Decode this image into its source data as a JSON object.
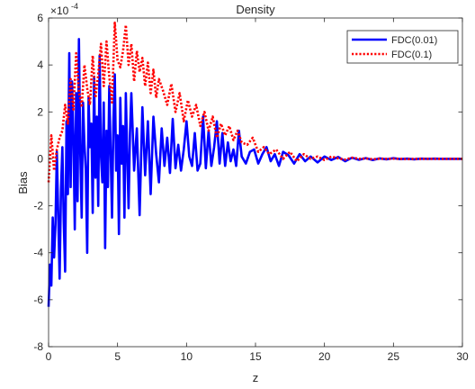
{
  "chart_data": {
    "type": "line",
    "title": "Density",
    "xlabel": "z",
    "ylabel": "Bias",
    "y_exponent_label": "×10",
    "y_exponent_power": "-4",
    "xlim": [
      0,
      30
    ],
    "ylim": [
      -8,
      6
    ],
    "y_scale_factor": 0.0001,
    "grid": false,
    "legend_placement": "top-right",
    "xticks": [
      0,
      5,
      10,
      15,
      20,
      25,
      30
    ],
    "xtick_labels": [
      "0",
      "5",
      "10",
      "15",
      "20",
      "25",
      "30"
    ],
    "yticks": [
      -8,
      -6,
      -4,
      -2,
      0,
      2,
      4,
      6
    ],
    "ytick_labels": [
      "-8",
      "-6",
      "-4",
      "-2",
      "0",
      "2",
      "4",
      "6"
    ],
    "series": [
      {
        "name": "FDC(0.01)",
        "color": "#0000ff",
        "style": "solid",
        "x": [
          0,
          0.1,
          0.2,
          0.3,
          0.4,
          0.5,
          0.6,
          0.7,
          0.8,
          0.9,
          1.0,
          1.1,
          1.2,
          1.3,
          1.4,
          1.5,
          1.6,
          1.7,
          1.8,
          1.9,
          2.0,
          2.1,
          2.2,
          2.3,
          2.4,
          2.5,
          2.6,
          2.7,
          2.8,
          2.9,
          3.0,
          3.1,
          3.2,
          3.3,
          3.4,
          3.5,
          3.6,
          3.7,
          3.8,
          3.9,
          4.0,
          4.1,
          4.2,
          4.3,
          4.4,
          4.5,
          4.6,
          4.7,
          4.8,
          4.9,
          5.0,
          5.1,
          5.2,
          5.3,
          5.4,
          5.5,
          5.6,
          5.7,
          5.8,
          5.9,
          6.0,
          6.2,
          6.4,
          6.6,
          6.8,
          7.0,
          7.2,
          7.4,
          7.6,
          7.8,
          8.0,
          8.2,
          8.4,
          8.6,
          8.8,
          9.0,
          9.2,
          9.4,
          9.6,
          9.8,
          10.0,
          10.2,
          10.4,
          10.6,
          10.8,
          11.0,
          11.2,
          11.4,
          11.6,
          11.8,
          12.0,
          12.2,
          12.4,
          12.6,
          12.8,
          13.0,
          13.2,
          13.4,
          13.6,
          13.8,
          14.0,
          14.3,
          14.6,
          14.9,
          15.2,
          15.5,
          15.8,
          16.1,
          16.4,
          16.7,
          17.0,
          17.4,
          17.8,
          18.2,
          18.6,
          19.0,
          19.5,
          20.0,
          20.5,
          21.0,
          21.5,
          22.0,
          22.5,
          23.0,
          23.5,
          24.0,
          24.5,
          25.0,
          25.5,
          26.0,
          26.5,
          27.0,
          27.5,
          28.0,
          28.5,
          29.0,
          29.5,
          30.0
        ],
        "y": [
          -6.3,
          -4.5,
          -5.4,
          -2.5,
          -4.2,
          -2.8,
          0.3,
          -2.4,
          -5.1,
          -1.3,
          0.5,
          -2.7,
          -4.8,
          1.6,
          -1.5,
          4.5,
          -1.2,
          3.3,
          1.0,
          -3.0,
          2.8,
          -1.8,
          5.1,
          0.2,
          -2.5,
          2.4,
          0.6,
          -0.5,
          -4.0,
          2.6,
          0.5,
          1.5,
          -2.3,
          3.5,
          -0.8,
          1.8,
          -2.0,
          4.4,
          0.1,
          -1.0,
          2.4,
          -3.8,
          1.2,
          -1.2,
          3.1,
          0.3,
          -2.5,
          1.6,
          3.6,
          -0.5,
          1.0,
          -3.2,
          2.6,
          -0.2,
          1.4,
          -2.5,
          2.8,
          0.2,
          -2.1,
          1.1,
          2.8,
          -0.5,
          1.3,
          -2.4,
          2.2,
          -0.7,
          1.6,
          -1.5,
          1.8,
          0.2,
          -1.0,
          1.3,
          -0.3,
          0.9,
          -0.6,
          1.7,
          -0.4,
          0.6,
          -0.5,
          0.4,
          1.6,
          0.1,
          -0.3,
          1.1,
          -0.5,
          -0.2,
          1.8,
          -0.4,
          1.2,
          -0.3,
          0.5,
          1.6,
          -0.2,
          1.1,
          -0.3,
          0.7,
          -0.1,
          0.4,
          -0.3,
          1.2,
          0.1,
          -0.2,
          0.3,
          0.4,
          -0.2,
          0.2,
          0.5,
          -0.1,
          0.2,
          -0.3,
          0.3,
          0.15,
          -0.2,
          0.2,
          -0.1,
          0.1,
          -0.15,
          0.1,
          -0.05,
          0.08,
          -0.1,
          0.05,
          -0.04,
          0.03,
          -0.05,
          0.02,
          -0.02,
          0.03,
          -0.01,
          0.01,
          -0.02,
          0.01,
          0.0,
          0.01,
          0.0,
          0.0,
          0.0,
          0.0
        ]
      },
      {
        "name": "FDC(0.1)",
        "color": "#ff0000",
        "style": "dotted",
        "x": [
          0,
          0.2,
          0.4,
          0.6,
          0.8,
          1.0,
          1.2,
          1.4,
          1.6,
          1.8,
          2.0,
          2.2,
          2.4,
          2.6,
          2.8,
          3.0,
          3.2,
          3.4,
          3.6,
          3.8,
          4.0,
          4.2,
          4.4,
          4.6,
          4.8,
          5.0,
          5.2,
          5.4,
          5.6,
          5.8,
          6.0,
          6.2,
          6.4,
          6.6,
          6.8,
          7.0,
          7.2,
          7.4,
          7.6,
          7.8,
          8.0,
          8.3,
          8.6,
          8.9,
          9.2,
          9.5,
          9.8,
          10.1,
          10.4,
          10.7,
          11.0,
          11.3,
          11.6,
          11.9,
          12.2,
          12.5,
          12.8,
          13.1,
          13.4,
          13.7,
          14.0,
          14.4,
          14.8,
          15.2,
          15.6,
          16.0,
          16.5,
          17.0,
          17.5,
          18.0,
          18.5,
          19.0,
          19.5,
          20.0,
          20.5,
          21.0,
          21.5,
          22.0,
          22.5,
          23.0,
          23.5,
          24.0,
          24.5,
          25.0,
          25.5,
          26.0,
          26.5,
          27.0,
          27.5,
          28.0,
          28.5,
          29.0,
          29.5,
          30.0
        ],
        "y": [
          -1.0,
          1.0,
          -0.5,
          0.4,
          0.9,
          1.2,
          2.3,
          1.5,
          3.4,
          2.1,
          4.5,
          2.9,
          2.2,
          4.0,
          3.0,
          2.3,
          4.4,
          2.6,
          3.6,
          4.9,
          3.1,
          5.0,
          3.5,
          2.4,
          5.8,
          4.2,
          3.9,
          4.6,
          5.7,
          4.0,
          4.9,
          3.3,
          4.6,
          3.7,
          4.3,
          3.1,
          4.1,
          2.8,
          3.8,
          2.6,
          3.4,
          2.9,
          2.3,
          3.2,
          2.0,
          2.8,
          1.6,
          2.5,
          1.8,
          2.3,
          1.4,
          2.0,
          1.2,
          1.8,
          0.9,
          1.5,
          1.0,
          1.4,
          0.8,
          1.2,
          0.7,
          0.6,
          0.9,
          0.3,
          0.5,
          0.2,
          0.4,
          0.0,
          0.3,
          -0.1,
          0.2,
          0.0,
          0.1,
          -0.05,
          0.1,
          0.02,
          -0.03,
          0.05,
          0.0,
          0.02,
          -0.02,
          0.01,
          0.0,
          0.01,
          0.0,
          -0.01,
          0.0,
          0.0,
          0.0,
          0.0,
          0.0,
          0.0,
          0.0,
          0.0
        ]
      }
    ]
  }
}
